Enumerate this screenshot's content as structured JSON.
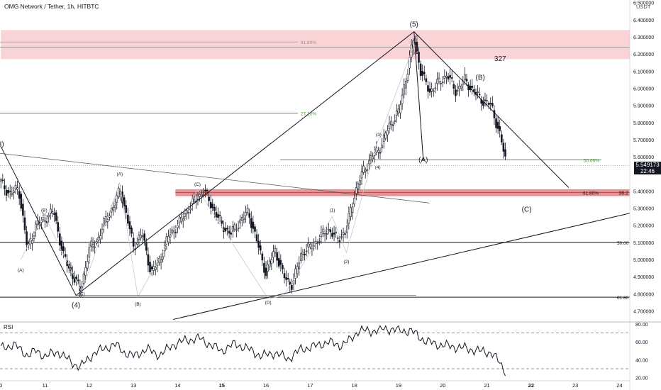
{
  "header": {
    "title": "OMG Network / Tether, 1h, HITBTC",
    "currency": "USDT",
    "last_price": "5.549173",
    "countdown": "22:46",
    "rsi_label": "RSI"
  },
  "colors": {
    "up": "#131722",
    "down": "#131722",
    "zone_upper": "#f7c8cc",
    "zone_support": "#e57c82",
    "fib_green": "#4f9a3c",
    "trend": "#131722",
    "rsi_line": "#131722"
  },
  "chart_data": {
    "type": "candlestick",
    "title": "OMG Network / Tether, 1h, HITBTC",
    "xlabel": "",
    "ylabel": "",
    "x_ticks": [
      "0",
      "11",
      "12",
      "13",
      "14",
      "15",
      "16",
      "17",
      "18",
      "19",
      "20",
      "21",
      "22",
      "23",
      "24"
    ],
    "y_ticks": [
      "6.400000",
      "6.300000",
      "6.200000",
      "6.100000",
      "6.000000",
      "5.900000",
      "5.800000",
      "5.700000",
      "5.600000",
      "5.400000",
      "5.300000",
      "5.200000",
      "5.100000",
      "5.000000",
      "4.900000",
      "4.800000",
      "4.700000"
    ],
    "y_ticks_top_partial": [
      "6.500000"
    ],
    "ylim": [
      4.65,
      6.52
    ],
    "rsi_ticks": [
      "80.00",
      "60.00",
      "40.00",
      "20.00"
    ],
    "rsi_ylim": [
      18,
      82
    ],
    "rsi_levels": [
      70,
      30
    ],
    "price_path": [
      [
        10.0,
        5.45
      ],
      [
        10.2,
        5.38
      ],
      [
        10.4,
        5.42
      ],
      [
        10.6,
        5.06
      ],
      [
        10.8,
        5.2
      ],
      [
        11.0,
        5.24
      ],
      [
        11.2,
        5.28
      ],
      [
        11.4,
        5.03
      ],
      [
        11.6,
        4.92
      ],
      [
        11.8,
        4.82
      ],
      [
        12.0,
        5.06
      ],
      [
        12.2,
        5.12
      ],
      [
        12.4,
        5.25
      ],
      [
        12.6,
        5.33
      ],
      [
        12.7,
        5.42
      ],
      [
        12.8,
        5.3
      ],
      [
        13.0,
        5.08
      ],
      [
        13.2,
        5.15
      ],
      [
        13.4,
        4.92
      ],
      [
        13.6,
        5.0
      ],
      [
        13.8,
        5.14
      ],
      [
        14.0,
        5.2
      ],
      [
        14.2,
        5.28
      ],
      [
        14.4,
        5.35
      ],
      [
        14.6,
        5.4
      ],
      [
        14.8,
        5.3
      ],
      [
        15.0,
        5.2
      ],
      [
        15.2,
        5.15
      ],
      [
        15.4,
        5.22
      ],
      [
        15.6,
        5.28
      ],
      [
        15.8,
        5.1
      ],
      [
        16.0,
        4.92
      ],
      [
        16.2,
        5.06
      ],
      [
        16.4,
        4.9
      ],
      [
        16.6,
        4.85
      ],
      [
        16.8,
        5.04
      ],
      [
        17.0,
        5.07
      ],
      [
        17.2,
        5.12
      ],
      [
        17.4,
        5.18
      ],
      [
        17.6,
        5.12
      ],
      [
        17.8,
        5.16
      ],
      [
        18.0,
        5.38
      ],
      [
        18.2,
        5.52
      ],
      [
        18.4,
        5.6
      ],
      [
        18.6,
        5.66
      ],
      [
        18.8,
        5.79
      ],
      [
        19.0,
        5.86
      ],
      [
        19.2,
        6.1
      ],
      [
        19.35,
        6.3
      ],
      [
        19.5,
        6.1
      ],
      [
        19.7,
        5.98
      ],
      [
        19.9,
        6.03
      ],
      [
        20.1,
        6.08
      ],
      [
        20.3,
        5.98
      ],
      [
        20.5,
        6.05
      ],
      [
        20.7,
        5.98
      ],
      [
        20.9,
        5.93
      ],
      [
        21.1,
        5.9
      ],
      [
        21.3,
        5.72
      ],
      [
        21.45,
        5.549
      ]
    ],
    "rsi_path": [
      [
        10.0,
        53
      ],
      [
        10.3,
        57
      ],
      [
        10.6,
        45
      ],
      [
        10.8,
        50
      ],
      [
        11.0,
        44
      ],
      [
        11.3,
        49
      ],
      [
        11.6,
        37
      ],
      [
        11.8,
        32
      ],
      [
        12.1,
        47
      ],
      [
        12.4,
        54
      ],
      [
        12.6,
        57
      ],
      [
        12.8,
        48
      ],
      [
        13.0,
        44
      ],
      [
        13.3,
        52
      ],
      [
        13.6,
        45
      ],
      [
        13.9,
        57
      ],
      [
        14.2,
        62
      ],
      [
        14.5,
        64
      ],
      [
        14.8,
        55
      ],
      [
        15.0,
        50
      ],
      [
        15.3,
        58
      ],
      [
        15.6,
        52
      ],
      [
        15.9,
        44
      ],
      [
        16.2,
        48
      ],
      [
        16.5,
        41
      ],
      [
        16.8,
        52
      ],
      [
        17.1,
        55
      ],
      [
        17.4,
        60
      ],
      [
        17.7,
        56
      ],
      [
        17.9,
        62
      ],
      [
        18.1,
        73
      ],
      [
        18.4,
        72
      ],
      [
        18.7,
        75
      ],
      [
        19.0,
        73
      ],
      [
        19.3,
        72
      ],
      [
        19.6,
        61
      ],
      [
        19.9,
        57
      ],
      [
        20.2,
        55
      ],
      [
        20.5,
        53
      ],
      [
        20.8,
        50
      ],
      [
        21.1,
        48
      ],
      [
        21.3,
        36
      ],
      [
        21.45,
        24
      ]
    ],
    "horizontal_levels": [
      {
        "y": 6.24,
        "label": "",
        "style": "thin-black"
      },
      {
        "y": 6.27,
        "label": "61.80%",
        "style": "grey-fib"
      },
      {
        "y": 5.855,
        "label": "27.20%",
        "style": "green-fib"
      },
      {
        "y": 5.582,
        "label": "50.00%",
        "style": "green-fib"
      },
      {
        "y": 5.391,
        "label": "61.80%",
        "style": "red-fib"
      },
      {
        "y": 5.391,
        "label": "38.2",
        "style": "label-only"
      },
      {
        "y": 5.1,
        "label": "50.00",
        "style": "black"
      },
      {
        "y": 4.78,
        "label": "61.80",
        "style": "black"
      }
    ],
    "zones": [
      {
        "label": "resistance",
        "x_from": 10.0,
        "x_to": 24.3,
        "y_from": 6.17,
        "y_to": 6.34
      },
      {
        "label": "support",
        "x_from": 13.95,
        "x_to": 24.3,
        "y_from": 5.37,
        "y_to": 5.41
      }
    ],
    "annotations": [
      {
        "text": "(5)",
        "x": 19.35,
        "y": 6.36
      },
      {
        "text": "(A)",
        "x": 19.56,
        "y": 5.57
      },
      {
        "text": "(B)",
        "x": 20.85,
        "y": 6.05
      },
      {
        "text": "(C)",
        "x": 21.9,
        "y": 5.28
      },
      {
        "text": "(4)",
        "x": 11.7,
        "y": 4.72
      },
      {
        "text": "3)",
        "x": 10.0,
        "y": 5.66
      },
      {
        "text": "327",
        "x": 21.3,
        "y": 6.16
      },
      {
        "text": "(A)",
        "x": 10.45,
        "y": 4.93
      },
      {
        "text": "(B)",
        "x": 10.98,
        "y": 5.28
      },
      {
        "text": "(C)",
        "x": 11.83,
        "y": 4.79
      },
      {
        "text": "(A)",
        "x": 12.69,
        "y": 5.49
      },
      {
        "text": "(B)",
        "x": 13.1,
        "y": 4.73
      },
      {
        "text": "(C)",
        "x": 14.45,
        "y": 5.43
      },
      {
        "text": "(D)",
        "x": 16.05,
        "y": 4.74
      },
      {
        "text": "(1)",
        "x": 17.5,
        "y": 5.28
      },
      {
        "text": "(2)",
        "x": 17.82,
        "y": 4.98
      },
      {
        "text": "(3)",
        "x": 18.55,
        "y": 5.72
      },
      {
        "text": "(4)",
        "x": 18.53,
        "y": 5.53
      },
      {
        "text": "(5)",
        "x": 19.42,
        "y": 6.2
      }
    ]
  }
}
